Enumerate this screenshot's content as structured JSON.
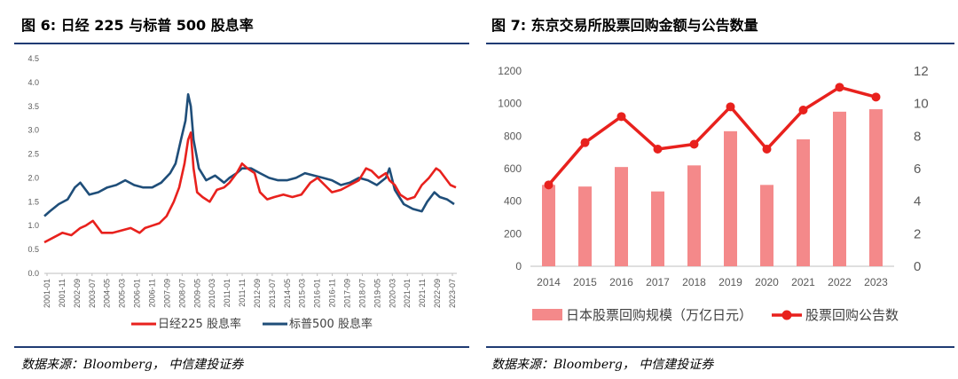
{
  "left": {
    "title": "图 6:  日经 225 与标普 500 股息率",
    "source": "数据来源：Bloomberg，  中信建投证券",
    "chart_data": {
      "type": "line",
      "ylim": [
        0,
        4.5
      ],
      "y_ticks": [
        "0.0",
        "0.5",
        "1.0",
        "1.5",
        "2.0",
        "2.5",
        "3.0",
        "3.5",
        "4.0",
        "4.5"
      ],
      "x_ticks": [
        "2001-01",
        "2001-11",
        "2002-09",
        "2003-07",
        "2004-05",
        "2005-03",
        "2006-01",
        "2006-11",
        "2007-09",
        "2008-07",
        "2009-05",
        "2010-03",
        "2011-01",
        "2011-11",
        "2012-09",
        "2013-07",
        "2014-05",
        "2015-03",
        "2016-01",
        "2016-11",
        "2017-09",
        "2018-07",
        "2019-05",
        "2020-03",
        "2021-01",
        "2021-11",
        "2022-09",
        "2023-07"
      ],
      "series": [
        {
          "name": "日经225 股息率",
          "color": "#e8211d",
          "x": [
            2001.0,
            2001.5,
            2002.0,
            2002.5,
            2003.0,
            2003.3,
            2003.7,
            2004.2,
            2004.8,
            2005.3,
            2005.8,
            2006.3,
            2006.6,
            2007.0,
            2007.4,
            2007.8,
            2008.2,
            2008.5,
            2008.8,
            2009.0,
            2009.15,
            2009.3,
            2009.5,
            2009.8,
            2010.2,
            2010.6,
            2011.0,
            2011.3,
            2011.7,
            2012.0,
            2012.3,
            2012.7,
            2013.0,
            2013.4,
            2013.8,
            2014.3,
            2014.8,
            2015.3,
            2015.8,
            2016.2,
            2016.6,
            2017.0,
            2017.5,
            2018.0,
            2018.5,
            2018.9,
            2019.2,
            2019.6,
            2020.0,
            2020.2,
            2020.5,
            2020.8,
            2021.2,
            2021.6,
            2022.0,
            2022.4,
            2022.8,
            2023.0,
            2023.3,
            2023.6,
            2023.9
          ],
          "y": [
            0.65,
            0.75,
            0.85,
            0.8,
            0.95,
            1.0,
            1.1,
            0.85,
            0.85,
            0.9,
            0.95,
            0.85,
            0.95,
            1.0,
            1.05,
            1.2,
            1.5,
            1.8,
            2.3,
            2.8,
            2.95,
            2.2,
            1.7,
            1.6,
            1.5,
            1.75,
            1.8,
            1.9,
            2.1,
            2.3,
            2.2,
            2.1,
            1.7,
            1.55,
            1.6,
            1.65,
            1.6,
            1.65,
            1.9,
            2.0,
            1.85,
            1.7,
            1.75,
            1.85,
            1.95,
            2.2,
            2.15,
            2.0,
            2.1,
            1.95,
            1.85,
            1.65,
            1.55,
            1.6,
            1.85,
            2.0,
            2.2,
            2.15,
            2.0,
            1.85,
            1.8
          ]
        },
        {
          "name": "标普500 股息率",
          "color": "#1f4e79",
          "x": [
            2001.0,
            2001.3,
            2001.8,
            2002.3,
            2002.7,
            2003.0,
            2003.5,
            2004.0,
            2004.5,
            2005.0,
            2005.5,
            2006.0,
            2006.5,
            2007.0,
            2007.5,
            2008.0,
            2008.3,
            2008.6,
            2008.85,
            2009.0,
            2009.15,
            2009.3,
            2009.6,
            2010.0,
            2010.5,
            2011.0,
            2011.3,
            2011.7,
            2012.0,
            2012.5,
            2013.0,
            2013.5,
            2014.0,
            2014.5,
            2015.0,
            2015.5,
            2016.0,
            2016.5,
            2017.0,
            2017.5,
            2018.0,
            2018.5,
            2019.0,
            2019.5,
            2020.0,
            2020.2,
            2020.5,
            2021.0,
            2021.5,
            2022.0,
            2022.3,
            2022.7,
            2023.0,
            2023.4,
            2023.8
          ],
          "y": [
            1.2,
            1.3,
            1.45,
            1.55,
            1.8,
            1.9,
            1.65,
            1.7,
            1.8,
            1.85,
            1.95,
            1.85,
            1.8,
            1.8,
            1.9,
            2.1,
            2.3,
            2.8,
            3.2,
            3.75,
            3.5,
            2.8,
            2.2,
            1.95,
            2.05,
            1.9,
            2.0,
            2.1,
            2.2,
            2.2,
            2.1,
            2.0,
            1.95,
            1.95,
            2.0,
            2.1,
            2.05,
            2.0,
            1.95,
            1.85,
            1.9,
            2.0,
            1.95,
            1.85,
            2.0,
            2.2,
            1.75,
            1.45,
            1.35,
            1.3,
            1.5,
            1.7,
            1.6,
            1.55,
            1.45
          ]
        }
      ]
    }
  },
  "right": {
    "title": "图 7:  东京交易所股票回购金额与公告数量",
    "source": "数据来源：Bloomberg，  中信建投证券",
    "chart_data": {
      "type": "bar",
      "categories": [
        "2014",
        "2015",
        "2016",
        "2017",
        "2018",
        "2019",
        "2020",
        "2021",
        "2022",
        "2023"
      ],
      "ylim_left": [
        0,
        1200
      ],
      "ylim_right": [
        0,
        12
      ],
      "y_ticks_left": [
        "0",
        "200",
        "400",
        "600",
        "800",
        "1000",
        "1200"
      ],
      "y_ticks_right": [
        "0",
        "2",
        "4",
        "6",
        "8",
        "10",
        "12"
      ],
      "series": [
        {
          "name": "日本股票回购规模（万亿日元）",
          "type": "bar",
          "axis": "left",
          "color": "#f4898a",
          "values": [
            500,
            490,
            610,
            460,
            620,
            830,
            500,
            780,
            950,
            965
          ]
        },
        {
          "name": "股票回购公告数",
          "type": "line",
          "axis": "right",
          "color": "#e8211d",
          "values": [
            5.0,
            7.6,
            9.2,
            7.2,
            7.5,
            9.8,
            7.2,
            9.6,
            11.0,
            10.4
          ]
        }
      ]
    }
  }
}
